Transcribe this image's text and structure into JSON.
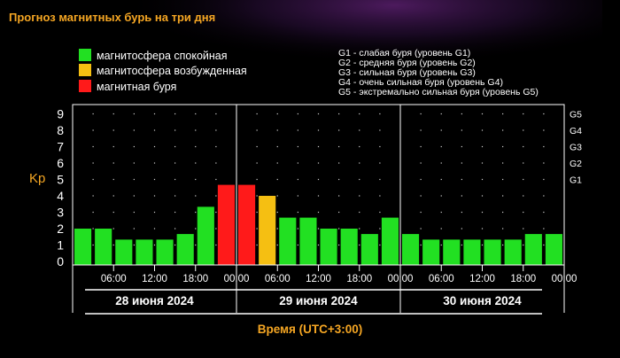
{
  "title": "Прогноз магнитных бурь на три дня",
  "legend": [
    {
      "label": "магнитосфера спокойная",
      "color": "#22e022"
    },
    {
      "label": "магнитосфера возбужденная",
      "color": "#f5bf12"
    },
    {
      "label": "магнитная буря",
      "color": "#ff1a1a"
    }
  ],
  "storm_levels": [
    "G1 - слабая буря (уровень G1)",
    "G2 - средняя буря (уровень G2)",
    "G3 - сильная буря (уровень G3)",
    "G4 - очень сильная буря (уровень G4)",
    "G5 - экстремально сильная буря (уровень G5)"
  ],
  "colors": {
    "background": "#000000",
    "title": "#f5a623",
    "axis_label": "#f5a623",
    "text": "#ffffff",
    "grid": "#cfcfcf"
  },
  "chart_data": {
    "type": "bar",
    "ylabel": "Kp",
    "xlabel": "Время (UTC+3:00)",
    "ylim": [
      0,
      9
    ],
    "yticks": [
      0,
      1,
      2,
      3,
      4,
      5,
      6,
      7,
      8,
      9
    ],
    "right_ticks": [
      {
        "label": "G1",
        "value": 5
      },
      {
        "label": "G2",
        "value": 6
      },
      {
        "label": "G3",
        "value": 7
      },
      {
        "label": "G4",
        "value": 8
      },
      {
        "label": "G5",
        "value": 9
      }
    ],
    "days": [
      "28 июня 2024",
      "29 июня 2024",
      "30 июня 2024"
    ],
    "time_ticks": [
      "06:00",
      "12:00",
      "18:00",
      "00:00",
      "06:00",
      "12:00",
      "18:00",
      "00:00",
      "06:00",
      "12:00",
      "18:00",
      "00:00"
    ],
    "values": [
      2.0,
      2.0,
      1.33,
      1.33,
      1.33,
      1.67,
      3.33,
      4.67,
      4.67,
      4.0,
      2.67,
      2.67,
      2.0,
      2.0,
      1.67,
      2.67,
      1.67,
      1.33,
      1.33,
      1.33,
      1.33,
      1.33,
      1.67,
      1.67
    ],
    "levels": [
      "quiet",
      "quiet",
      "quiet",
      "quiet",
      "quiet",
      "quiet",
      "quiet",
      "storm",
      "storm",
      "active",
      "quiet",
      "quiet",
      "quiet",
      "quiet",
      "quiet",
      "quiet",
      "quiet",
      "quiet",
      "quiet",
      "quiet",
      "quiet",
      "quiet",
      "quiet",
      "quiet"
    ],
    "grid": true
  }
}
